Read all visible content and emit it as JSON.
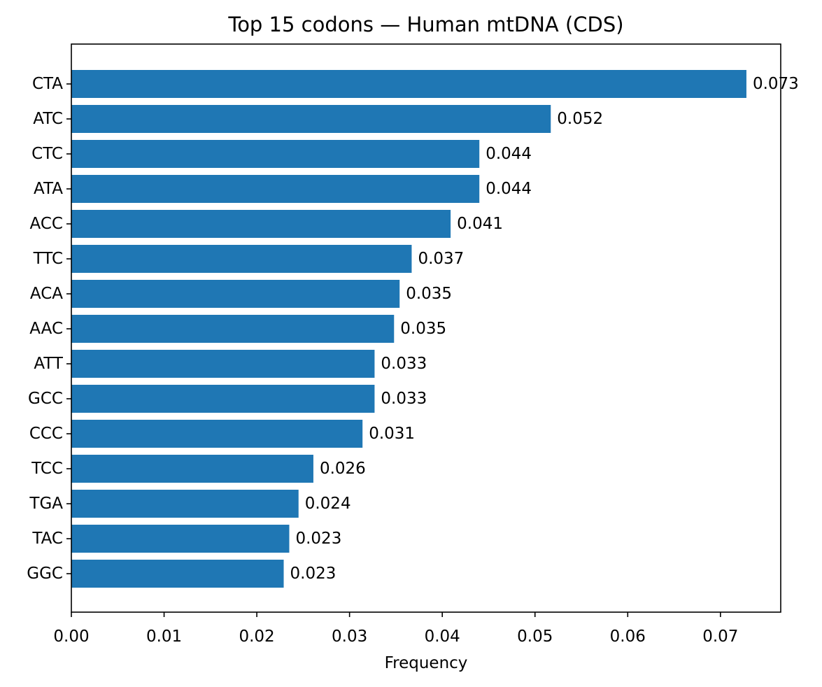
{
  "chart_data": {
    "type": "bar",
    "orientation": "horizontal",
    "title": "Top 15 codons — Human mtDNA (CDS)",
    "xlabel": "Frequency",
    "ylabel": "",
    "categories": [
      "CTA",
      "ATC",
      "CTC",
      "ATA",
      "ACC",
      "TTC",
      "ACA",
      "AAC",
      "ATT",
      "GCC",
      "CCC",
      "TCC",
      "TGA",
      "TAC",
      "GGC"
    ],
    "values": [
      0.0728,
      0.0517,
      0.044,
      0.044,
      0.0409,
      0.0367,
      0.0354,
      0.0348,
      0.0327,
      0.0327,
      0.0314,
      0.0261,
      0.0245,
      0.0235,
      0.0229
    ],
    "data_labels": [
      "0.073",
      "0.052",
      "0.044",
      "0.044",
      "0.041",
      "0.037",
      "0.035",
      "0.035",
      "0.033",
      "0.033",
      "0.031",
      "0.026",
      "0.024",
      "0.023",
      "0.023"
    ],
    "xlim": [
      0,
      0.0765
    ],
    "xticks": [
      0.0,
      0.01,
      0.02,
      0.03,
      0.04,
      0.05,
      0.06,
      0.07
    ],
    "xtick_labels": [
      "0.00",
      "0.01",
      "0.02",
      "0.03",
      "0.04",
      "0.05",
      "0.06",
      "0.07"
    ],
    "bar_color": "#1f77b4",
    "grid": false,
    "legend": "none"
  }
}
